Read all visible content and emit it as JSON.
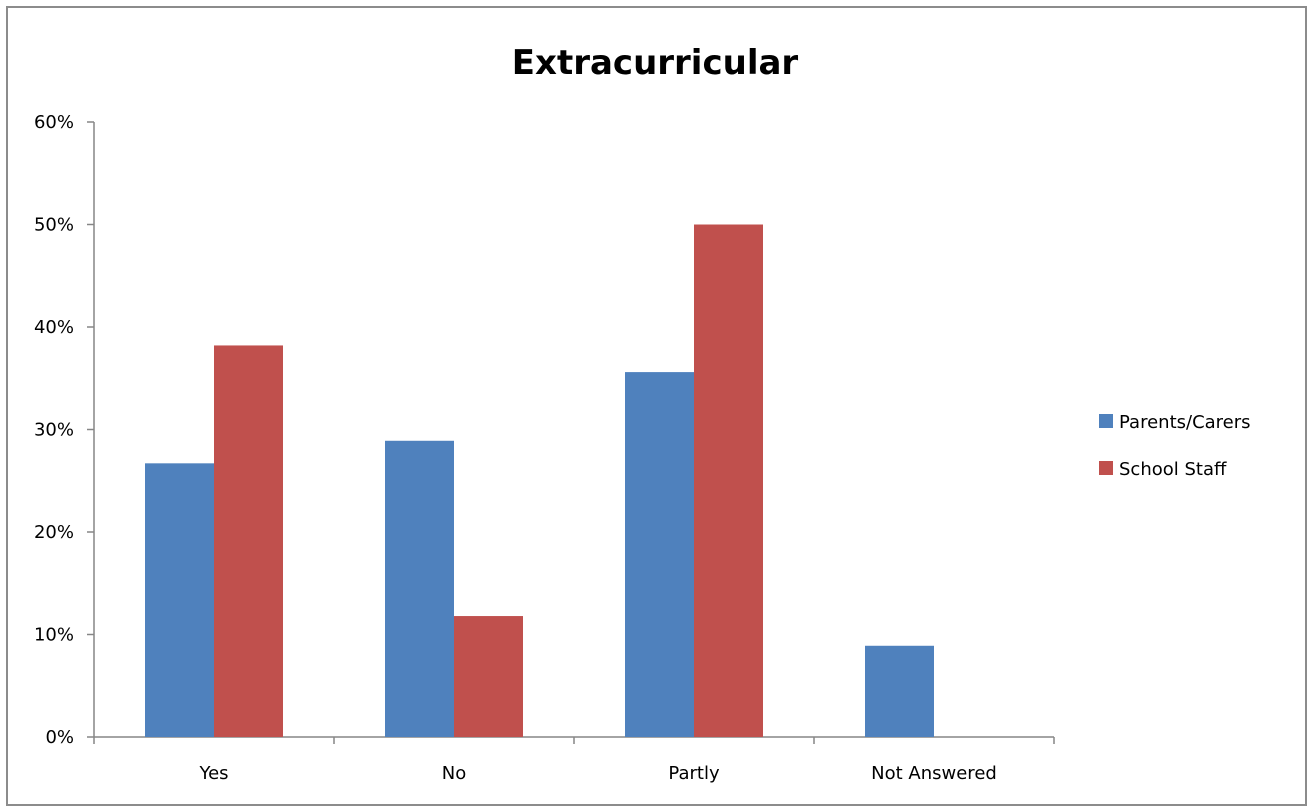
{
  "chart_data": {
    "type": "bar",
    "title": "Extracurricular",
    "xlabel": "",
    "ylabel": "",
    "categories": [
      "Yes",
      "No",
      "Partly",
      "Not Answered"
    ],
    "series": [
      {
        "name": "Parents/Carers",
        "color": "#4f81bd",
        "values": [
          0.267,
          0.289,
          0.356,
          0.089
        ]
      },
      {
        "name": "School Staff",
        "color": "#c0504d",
        "values": [
          0.382,
          0.118,
          0.5,
          0
        ]
      }
    ],
    "ylim": [
      0,
      0.6
    ],
    "y_ticks": [
      0,
      0.1,
      0.2,
      0.3,
      0.4,
      0.5,
      0.6
    ],
    "y_tick_labels": [
      "0%",
      "10%",
      "20%",
      "30%",
      "40%",
      "50%",
      "60%"
    ],
    "grid": false,
    "legend_position": "right"
  }
}
